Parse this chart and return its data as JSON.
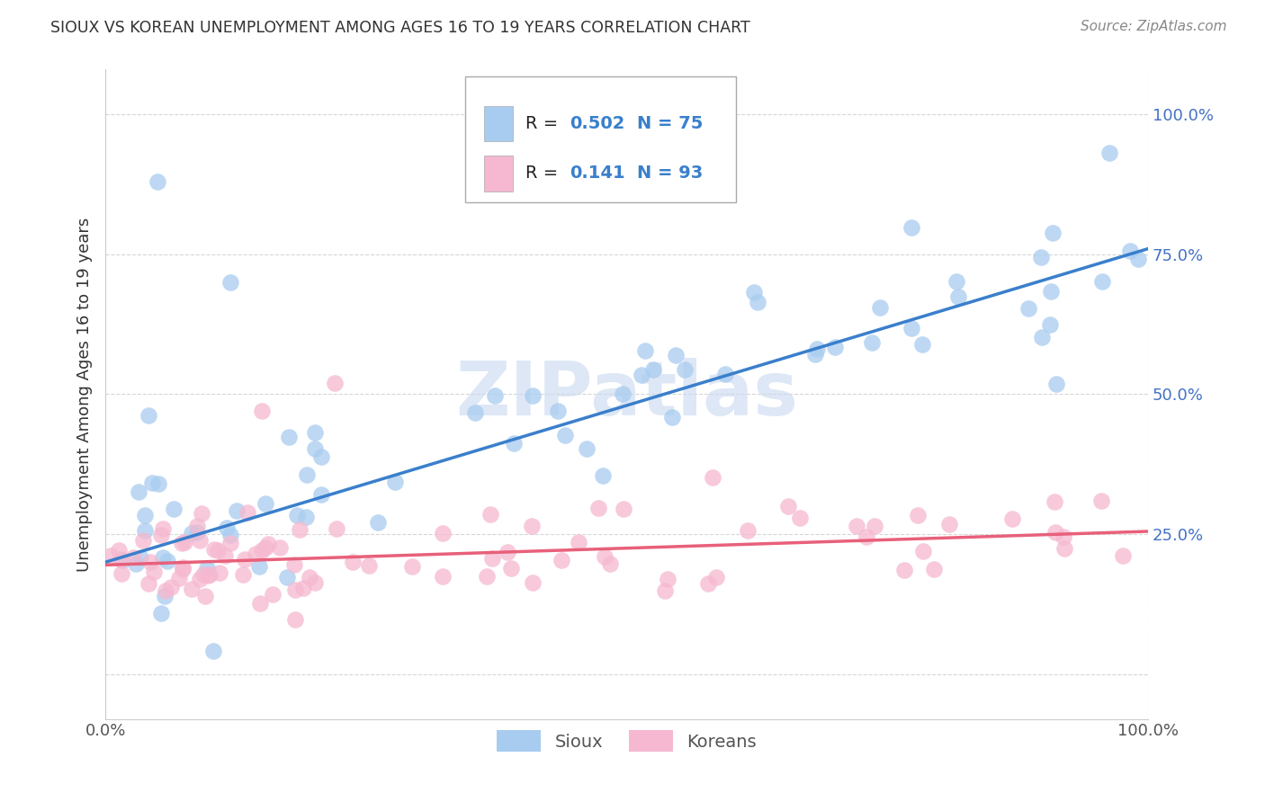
{
  "title": "SIOUX VS KOREAN UNEMPLOYMENT AMONG AGES 16 TO 19 YEARS CORRELATION CHART",
  "source": "Source: ZipAtlas.com",
  "ylabel": "Unemployment Among Ages 16 to 19 years",
  "xlim": [
    0.0,
    1.0
  ],
  "ylim": [
    -0.08,
    1.08
  ],
  "y_ticks": [
    0.0,
    0.25,
    0.5,
    0.75,
    1.0
  ],
  "y_tick_labels": [
    "",
    "25.0%",
    "50.0%",
    "75.0%",
    "100.0%"
  ],
  "x_ticks": [
    0.0,
    1.0
  ],
  "x_tick_labels": [
    "0.0%",
    "100.0%"
  ],
  "sioux_color": "#A8CCF0",
  "korean_color": "#F5B8D0",
  "line_sioux_color": "#3A7FCC",
  "line_korean_color": "#E8607A",
  "sioux_R": 0.502,
  "sioux_N": 75,
  "korean_R": 0.141,
  "korean_N": 93,
  "background_color": "#FFFFFF",
  "grid_color": "#CCCCCC",
  "legend_label_sioux": "Sioux",
  "legend_label_korean": "Koreans",
  "watermark_text": "ZIPatlas",
  "watermark_color": "#C8D8F0",
  "sioux_line_start_y": 0.2,
  "sioux_line_end_y": 0.76,
  "korean_line_start_y": 0.195,
  "korean_line_end_y": 0.255
}
